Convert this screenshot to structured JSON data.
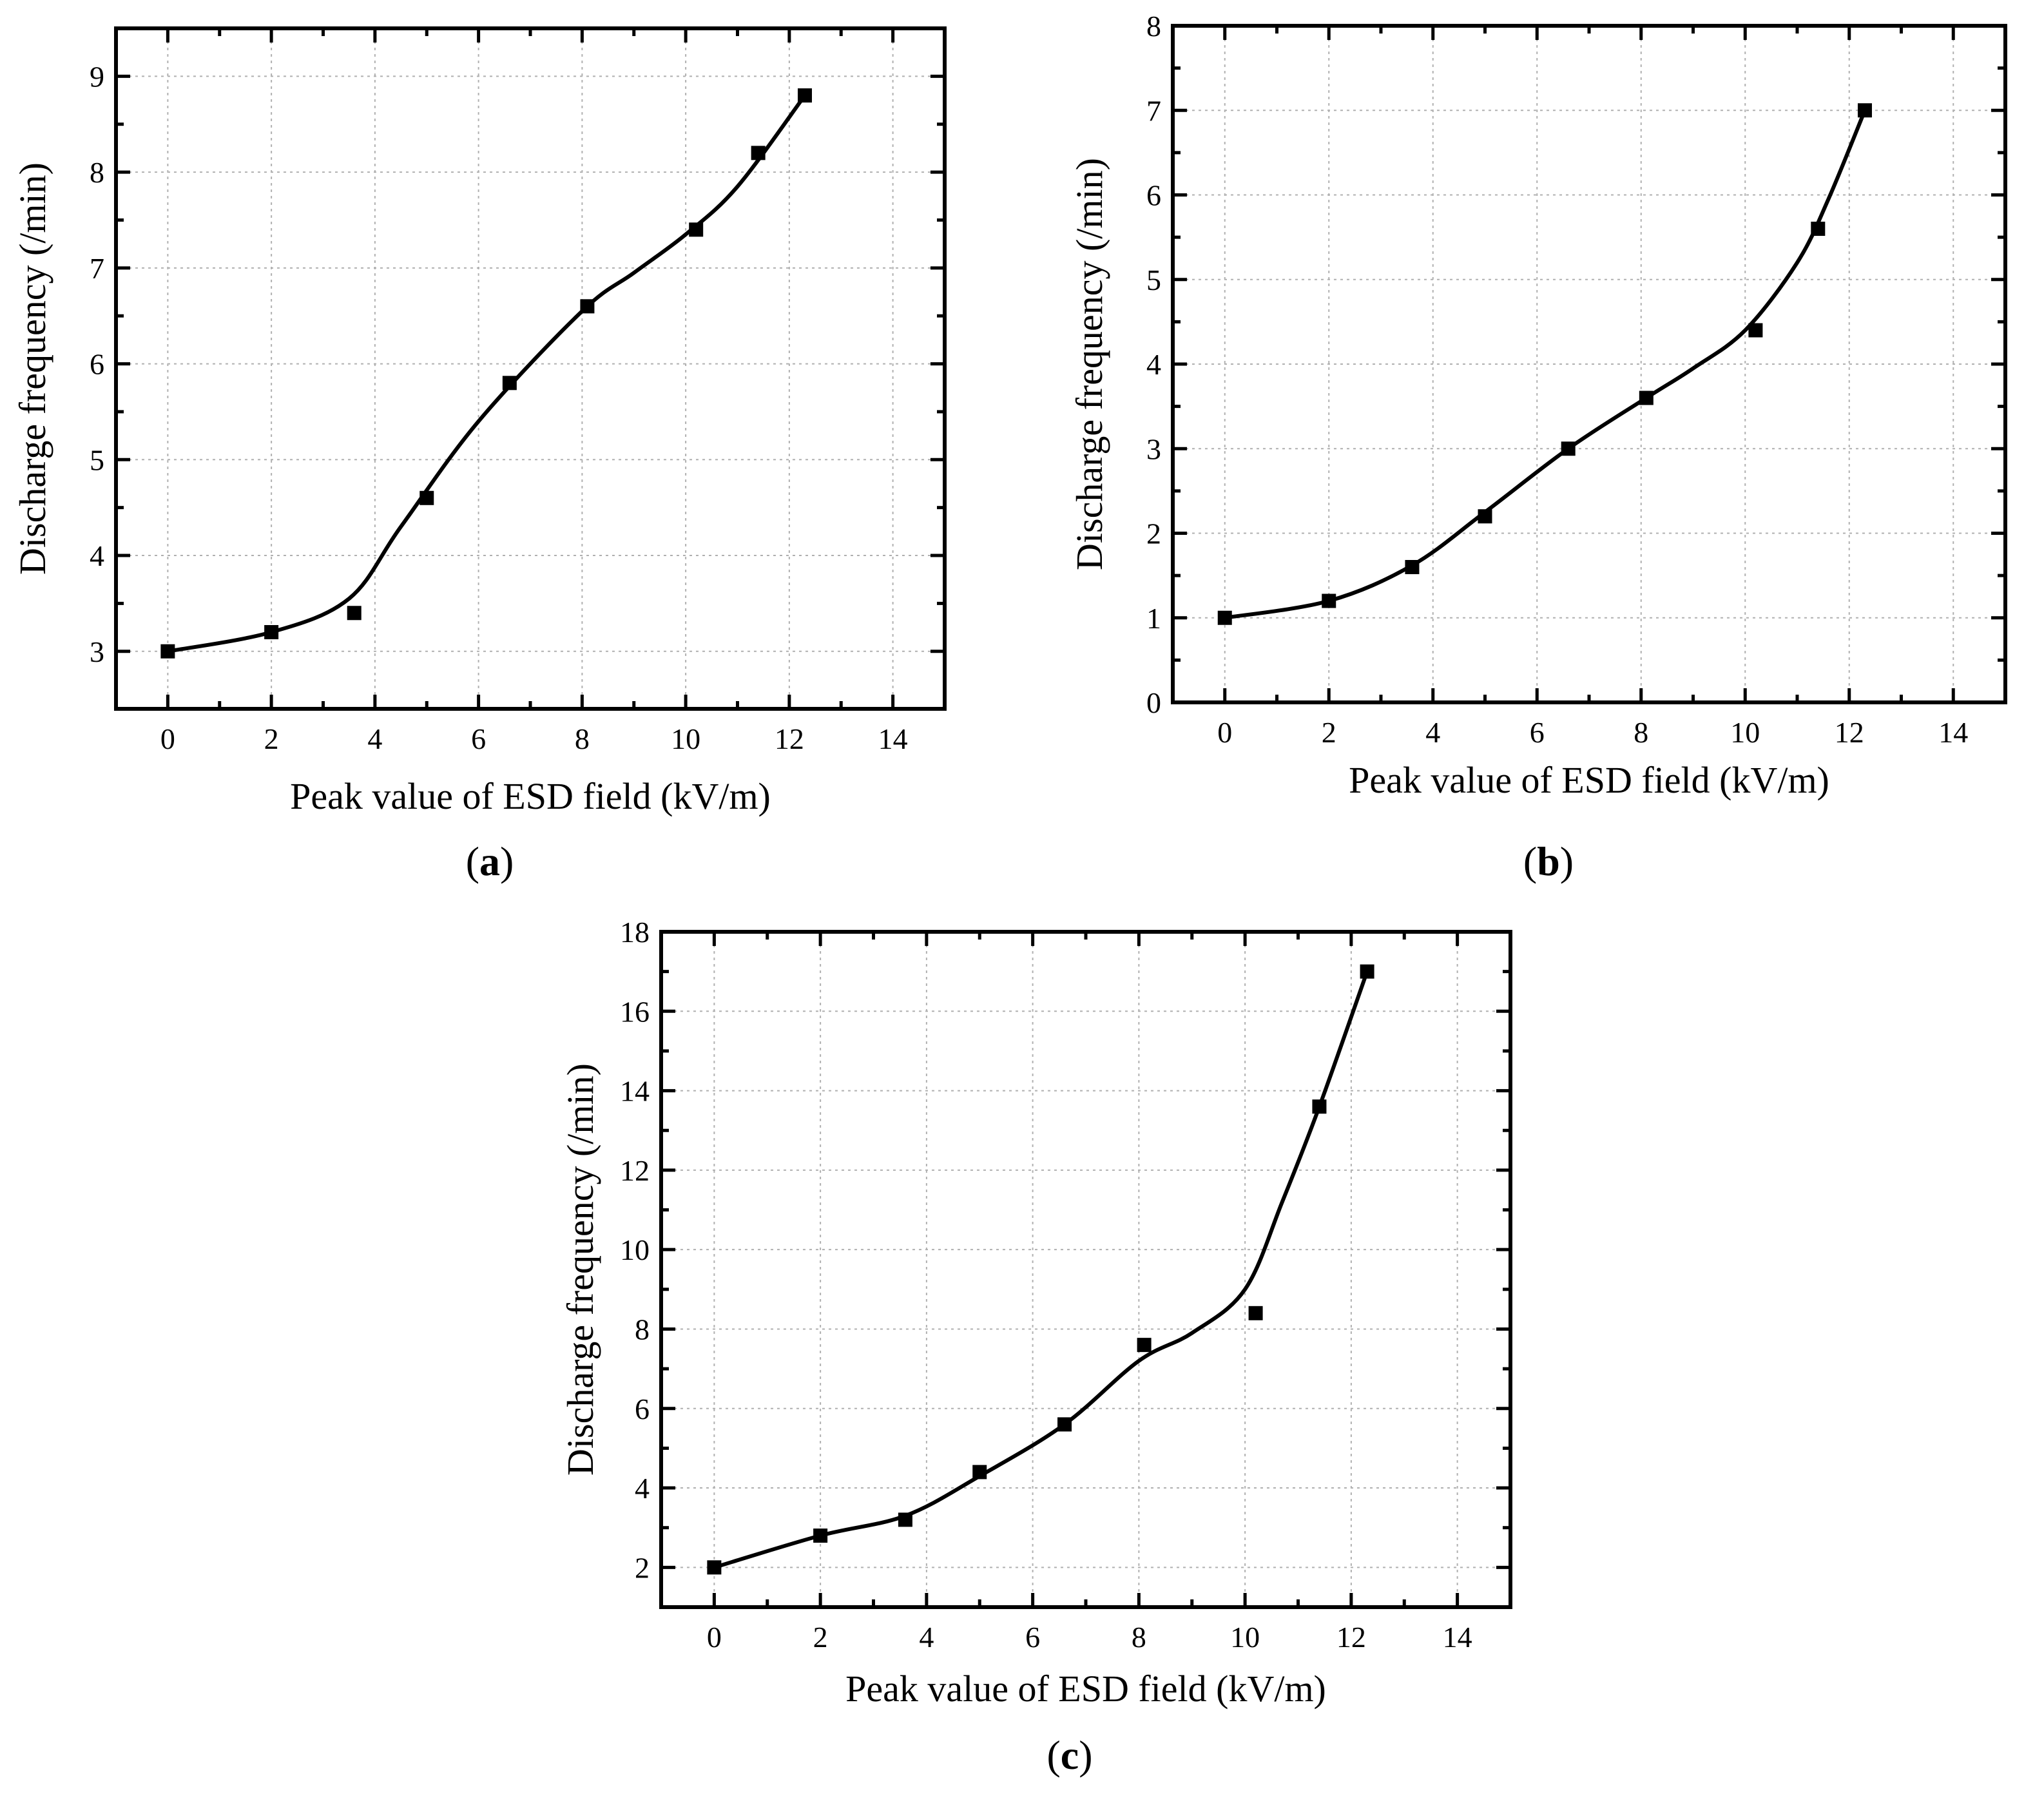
{
  "figure": {
    "panels": [
      "a",
      "b",
      "c"
    ]
  },
  "chart_data": [
    {
      "panel": "a",
      "type": "line",
      "xlabel": "Peak value of ESD field (kV/m)",
      "ylabel": "Discharge frequency (/min)",
      "xlim": [
        -1,
        15
      ],
      "ylim": [
        2.4,
        9.5
      ],
      "xticks": [
        0,
        2,
        4,
        6,
        8,
        10,
        12,
        14
      ],
      "yticks": [
        3,
        4,
        5,
        6,
        7,
        8,
        9
      ],
      "grid": true,
      "marker": "square",
      "smooth_curve": true,
      "x": [
        0,
        2,
        3.6,
        5,
        6.6,
        8.1,
        10.2,
        11.4,
        12.3
      ],
      "y": [
        3.0,
        3.2,
        3.4,
        4.6,
        5.8,
        6.6,
        7.4,
        8.2,
        8.8
      ],
      "curve_x": [
        0,
        2,
        3.5,
        4.5,
        6,
        8,
        9,
        10,
        11,
        12.3
      ],
      "curve_y": [
        3.0,
        3.2,
        3.55,
        4.3,
        5.4,
        6.55,
        6.95,
        7.35,
        7.85,
        8.8
      ]
    },
    {
      "panel": "b",
      "type": "line",
      "xlabel": "Peak value of ESD field (kV/m)",
      "ylabel": "Discharge frequency (/min)",
      "xlim": [
        -1,
        15
      ],
      "ylim": [
        0,
        8
      ],
      "xticks": [
        0,
        2,
        4,
        6,
        8,
        10,
        12,
        14
      ],
      "yticks": [
        0,
        1,
        2,
        3,
        4,
        5,
        6,
        7,
        8
      ],
      "grid": true,
      "marker": "square",
      "smooth_curve": true,
      "x": [
        0,
        2,
        3.6,
        5,
        6.6,
        8.1,
        10.2,
        11.4,
        12.3
      ],
      "y": [
        1.0,
        1.2,
        1.6,
        2.2,
        3.0,
        3.6,
        4.4,
        5.6,
        7.0
      ],
      "curve_x": [
        0,
        2,
        3.6,
        5,
        6.6,
        8.1,
        9,
        10,
        11,
        11.6,
        12.3
      ],
      "curve_y": [
        1.0,
        1.2,
        1.62,
        2.25,
        3.0,
        3.6,
        3.95,
        4.4,
        5.2,
        5.95,
        7.0
      ]
    },
    {
      "panel": "c",
      "type": "line",
      "xlabel": "Peak value of ESD field (kV/m)",
      "ylabel": "Discharge frequency (/min)",
      "xlim": [
        -1,
        15
      ],
      "ylim": [
        1,
        18
      ],
      "xticks": [
        0,
        2,
        4,
        6,
        8,
        10,
        12,
        14
      ],
      "yticks": [
        2,
        4,
        6,
        8,
        10,
        12,
        14,
        16,
        18
      ],
      "grid": true,
      "marker": "square",
      "smooth_curve": true,
      "x": [
        0,
        2,
        3.6,
        5,
        6.6,
        8.1,
        10.2,
        11.4,
        12.3
      ],
      "y": [
        2.0,
        2.8,
        3.2,
        4.4,
        5.6,
        7.6,
        8.4,
        13.6,
        17.0
      ],
      "curve_x": [
        0,
        2,
        3.6,
        5,
        6.6,
        8,
        9,
        10,
        10.7,
        11.4,
        12.3
      ],
      "curve_y": [
        2.0,
        2.8,
        3.3,
        4.3,
        5.6,
        7.2,
        7.9,
        9.0,
        11.2,
        13.6,
        17.0
      ]
    }
  ]
}
